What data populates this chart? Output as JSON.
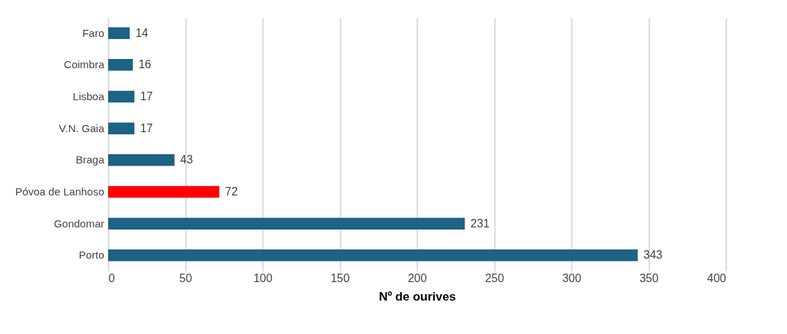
{
  "chart_data": {
    "type": "bar",
    "orientation": "horizontal",
    "xlabel": "Nº de ourives",
    "categories": [
      "Faro",
      "Coimbra",
      "Lisboa",
      "V.N. Gaia",
      "Braga",
      "Póvoa de Lanhoso",
      "Gondomar",
      "Porto"
    ],
    "values": [
      14,
      16,
      17,
      17,
      43,
      72,
      231,
      343
    ],
    "colors": [
      "#1d6385",
      "#1d6385",
      "#1d6385",
      "#1d6385",
      "#1d6385",
      "#ff0000",
      "#1d6385",
      "#1d6385"
    ],
    "xlim": [
      0,
      400
    ],
    "xticks": [
      0,
      50,
      100,
      150,
      200,
      250,
      300,
      350,
      400
    ],
    "grid": "x",
    "data_labels": true
  }
}
